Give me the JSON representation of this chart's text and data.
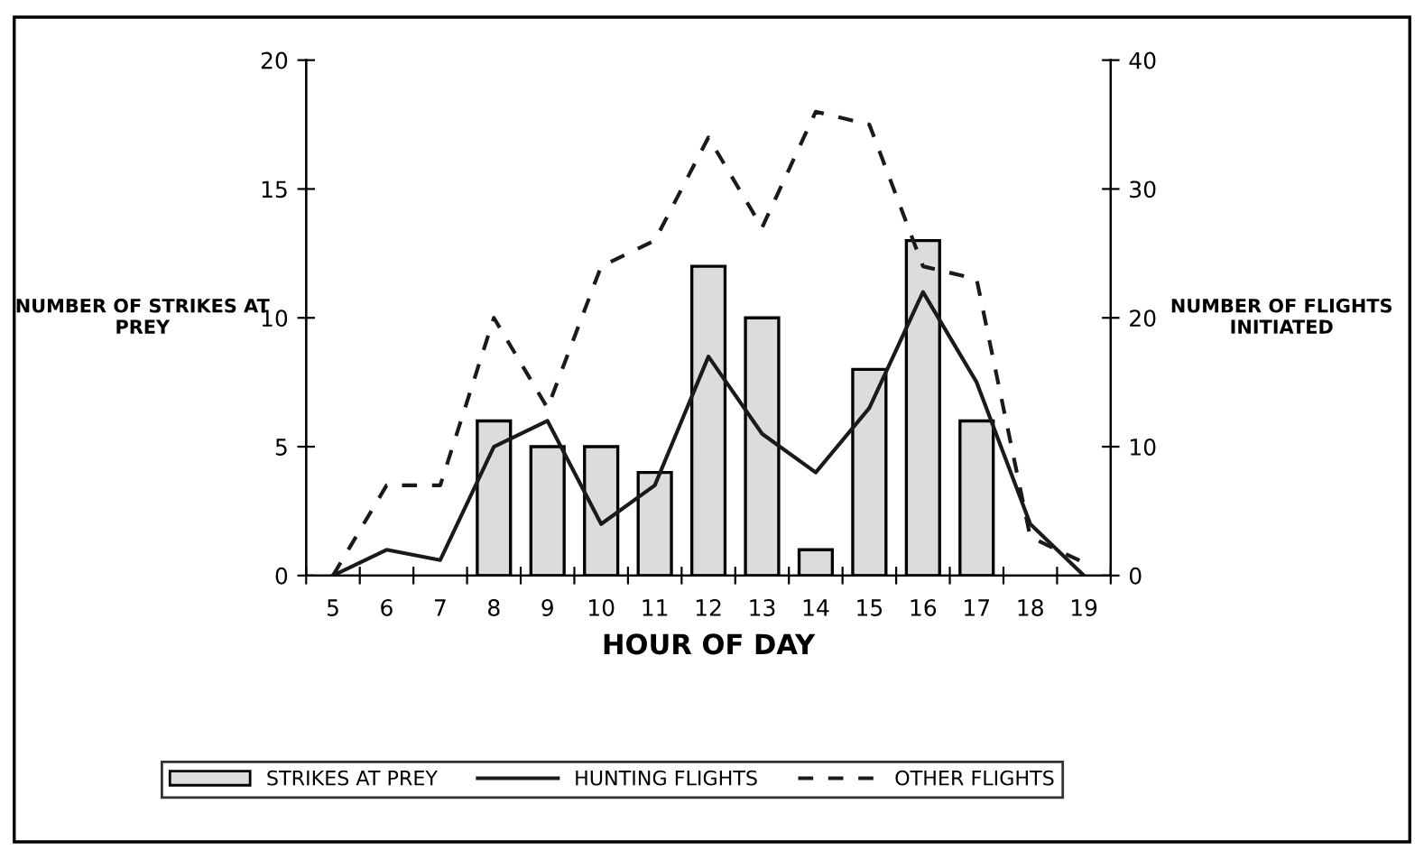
{
  "chart_data": {
    "type": "bar",
    "xlabel": "HOUR OF DAY",
    "ylabel": "NUMBER OF STRIKES AT PREY",
    "y2label": "NUMBER OF FLIGHTS INITIATED",
    "categories": [
      "5",
      "6",
      "7",
      "8",
      "9",
      "10",
      "11",
      "12",
      "13",
      "14",
      "15",
      "16",
      "17",
      "18",
      "19"
    ],
    "series": [
      {
        "name": "STRIKES AT PREY",
        "color": "#dcdcdc",
        "values": [
          0,
          0,
          0,
          6,
          5,
          5,
          4,
          12,
          10,
          1,
          8,
          13,
          6,
          0,
          0
        ]
      },
      {
        "name": "HUNTING FLIGHTS",
        "type": "line",
        "axis": "y2",
        "color": "#1a1a1a",
        "line_style": "solid",
        "values": [
          0,
          2,
          1.2,
          10,
          12,
          4,
          7,
          17,
          11,
          8,
          13,
          22,
          15,
          4,
          0
        ]
      },
      {
        "name": "OTHER FLIGHTS",
        "type": "line",
        "axis": "y2",
        "color": "#1a1a1a",
        "line_style": "dashed",
        "values": [
          0,
          7,
          7,
          20,
          13,
          24,
          26,
          34,
          27,
          36,
          35,
          24,
          23,
          3,
          1
        ]
      }
    ],
    "ylim": [
      0,
      20
    ],
    "yticks": [
      0,
      5,
      10,
      15,
      20
    ],
    "y2lim": [
      0,
      40
    ],
    "y2ticks": [
      0,
      10,
      20,
      30,
      40
    ],
    "legend": "bottom",
    "grid": false
  }
}
